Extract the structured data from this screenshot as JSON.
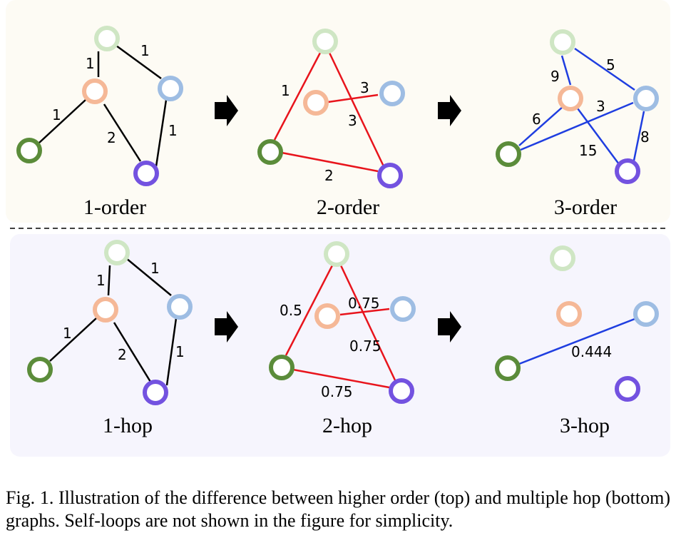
{
  "colors": {
    "top_bg": "#fdfbf4",
    "bottom_bg": "#f6f5fd",
    "node_green_light": "#cfe6c4",
    "node_orange": "#f5b897",
    "node_blue_light": "#9ebde3",
    "node_green_dark": "#5b8c3a",
    "node_purple": "#7352e0",
    "edge_black": "#000000",
    "edge_red": "#e8141c",
    "edge_blue": "#1f3ee0"
  },
  "panels": {
    "order1": {
      "label": "1-order",
      "edge_labels": {
        "a_b": "1",
        "a_c": "1",
        "b_d": "1",
        "b_e": "2",
        "c_e": "1"
      }
    },
    "order2": {
      "label": "2-order",
      "edge_labels": {
        "a_d": "1",
        "b_c": "3",
        "a_e": "3",
        "d_e": "2"
      }
    },
    "order3": {
      "label": "3-order",
      "edge_labels": {
        "a_b": "9",
        "a_c": "5",
        "d_b": "6",
        "d_c": "3",
        "b_e": "15",
        "c_e": "8"
      }
    },
    "hop1": {
      "label": "1-hop",
      "edge_labels": {
        "a_b": "1",
        "a_c": "1",
        "b_d": "1",
        "b_e": "2",
        "c_e": "1"
      }
    },
    "hop2": {
      "label": "2-hop",
      "edge_labels": {
        "a_d": "0.5",
        "b_c": "0.75",
        "a_e": "0.75",
        "d_e": "0.75"
      }
    },
    "hop3": {
      "label": "3-hop",
      "edge_labels": {
        "d_c": "0.444"
      }
    }
  },
  "caption": "Fig. 1.  Illustration of the difference between higher order (top) and multiple hop (bottom) graphs. Self-loops are not shown in the figure for simplicity."
}
